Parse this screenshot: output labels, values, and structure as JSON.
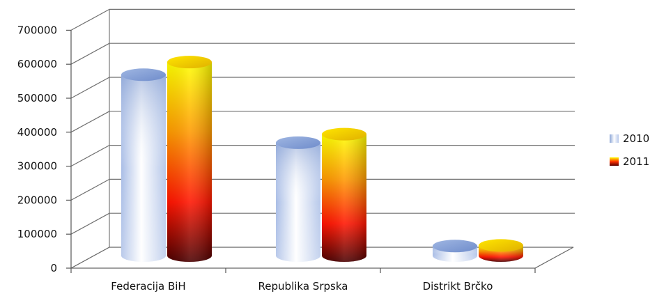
{
  "chart_data": {
    "type": "bar",
    "style": "3d-cylinder",
    "categories": [
      "Federacija BiH",
      "Republika Srpska",
      "Distrikt Brčko"
    ],
    "series": [
      {
        "name": "2010",
        "values": [
          570000,
          355000,
          28000
        ]
      },
      {
        "name": "2011",
        "values": [
          610000,
          382000,
          30000
        ]
      }
    ],
    "y_ticks": [
      "0",
      "100000",
      "200000",
      "300000",
      "400000",
      "500000",
      "600000",
      "700000"
    ],
    "ylim": [
      0,
      700000
    ],
    "grid": true,
    "legend_position": "right",
    "colors": {
      "2010": {
        "light": "#ffffff",
        "mid": "#c7d6f0",
        "dark": "#8aa4d6"
      },
      "2011": {
        "top": "#ffff00",
        "mid": "#ff8a00",
        "low": "#ff1400",
        "dark": "#4b0000"
      }
    }
  }
}
